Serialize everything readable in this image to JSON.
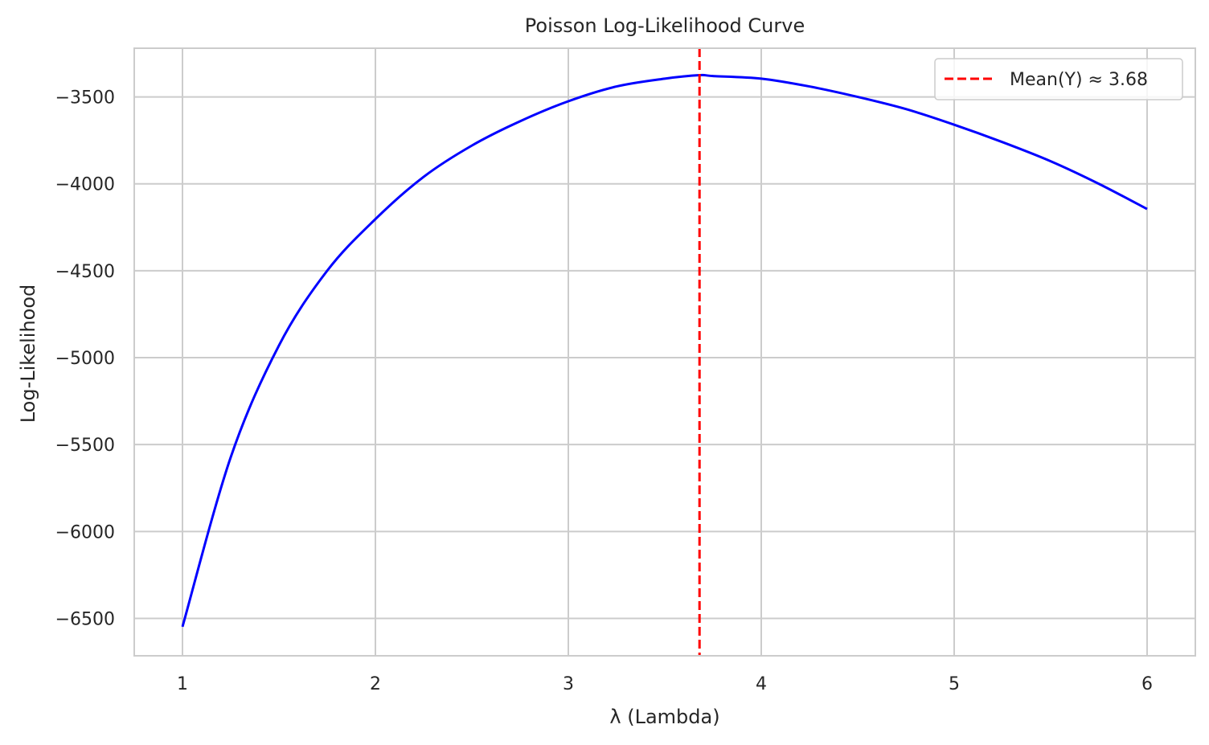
{
  "chart_data": {
    "type": "line",
    "title": "Poisson Log-Likelihood Curve",
    "xlabel": "λ (Lambda)",
    "ylabel": "Log-Likelihood",
    "xlim": [
      0.75,
      6.25
    ],
    "ylim": [
      -6715,
      -3220
    ],
    "xticks": [
      1,
      2,
      3,
      4,
      5,
      6
    ],
    "yticks": [
      -6500,
      -6000,
      -5500,
      -5000,
      -4500,
      -4000,
      -3500
    ],
    "xtick_labels": [
      "1",
      "2",
      "3",
      "4",
      "5",
      "6"
    ],
    "ytick_labels": [
      "−6500",
      "−6000",
      "−5500",
      "−5000",
      "−4500",
      "−4000",
      "−3500"
    ],
    "grid": true,
    "legend_position": "top-right",
    "series": [
      {
        "color": "#0000ff",
        "x": [
          1.0,
          1.25,
          1.5,
          1.75,
          2.0,
          2.25,
          2.5,
          2.75,
          3.0,
          3.25,
          3.5,
          3.68,
          3.75,
          4.0,
          4.25,
          4.5,
          4.75,
          5.0,
          5.25,
          5.5,
          5.75,
          6.0
        ],
        "y": [
          -6548,
          -5573,
          -4930,
          -4500,
          -4203,
          -3960,
          -3780,
          -3640,
          -3525,
          -3440,
          -3395,
          -3375,
          -3380,
          -3395,
          -3440,
          -3500,
          -3570,
          -3660,
          -3760,
          -3870,
          -4000,
          -4145
        ]
      }
    ],
    "annotations": [
      {
        "type": "vline",
        "x": 3.68,
        "color": "#ff0000",
        "style": "dashed",
        "label": "Mean(Y) ≈ 3.68"
      }
    ]
  }
}
